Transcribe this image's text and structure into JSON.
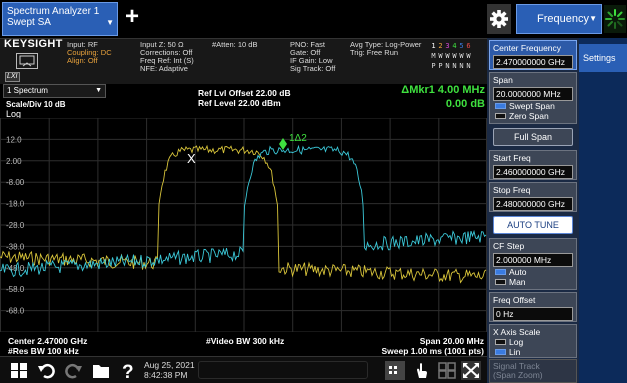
{
  "window": {
    "tab_title_line1": "Spectrum Analyzer 1",
    "tab_title_line2": "Swept SA",
    "add_tab": "+",
    "menu_label": "Frequency"
  },
  "info": {
    "brand": "KEYSIGHT",
    "lxi": "LXI",
    "col1": [
      "Input: RF",
      "Coupling: DC",
      "Align: Off"
    ],
    "col2": [
      "Input Z: 50 Ω",
      "Corrections: Off",
      "Freq Ref: Int (S)",
      "NFE: Adaptive"
    ],
    "col3": [
      "#Atten: 10 dB"
    ],
    "col4": [
      "PNO: Fast",
      "Gate: Off",
      "IF Gain: Low",
      "Sig Track: Off"
    ],
    "col5": [
      "Avg Type: Log-Power",
      "Trig: Free Run"
    ],
    "trace_row1": [
      "1",
      "2",
      "3",
      "4",
      "5",
      "6"
    ],
    "trace_row2": [
      "M",
      "W",
      "W",
      "W",
      "W",
      "W"
    ],
    "trace_row3": [
      "P",
      "P",
      "N",
      "N",
      "N",
      "N"
    ]
  },
  "plot": {
    "window_select": "1 Spectrum",
    "scale_div": "Scale/Div 10 dB",
    "scale_type": "Log",
    "ref_offset": "Ref Lvl Offset 22.00 dB",
    "ref_level": "Ref Level 22.00 dBm",
    "marker_label": "ΔMkr1  4.00 MHz",
    "marker_value": "0.00 dB",
    "marker_x": "X",
    "marker_delta": "1Δ2",
    "y_ticks": [
      "12.0",
      "2.00",
      "-8.00",
      "-18.0",
      "-28.0",
      "-38.0",
      "-48.0",
      "-58.0",
      "-68.0"
    ],
    "center_freq": "Center 2.47000 GHz",
    "res_bw": "#Res BW 100 kHz",
    "video_bw": "#Video BW 300 kHz",
    "span": "Span 20.00 MHz",
    "sweep": "Sweep 1.00 ms (1001 pts)"
  },
  "softkeys": {
    "center_freq_label": "Center Frequency",
    "center_freq_value": "2.470000000 GHz",
    "span_label": "Span",
    "span_value": "20.0000000 MHz",
    "swept_span": "Swept Span",
    "zero_span": "Zero Span",
    "full_span": "Full Span",
    "start_freq_label": "Start Freq",
    "start_freq_value": "2.460000000 GHz",
    "stop_freq_label": "Stop Freq",
    "stop_freq_value": "2.480000000 GHz",
    "auto_tune": "AUTO TUNE",
    "cf_step_label": "CF Step",
    "cf_step_value": "2.000000 MHz",
    "auto": "Auto",
    "man": "Man",
    "freq_offset_label": "Freq Offset",
    "freq_offset_value": "0 Hz",
    "x_axis_scale_label": "X Axis Scale",
    "log": "Log",
    "lin": "Lin",
    "signal_track_line1": "Signal Track",
    "signal_track_line2": "(Span Zoom)",
    "settings_tab": "Settings"
  },
  "taskbar": {
    "date": "Aug 25, 2021",
    "time": "8:42:38 PM"
  },
  "colors": {
    "yellow_trace": "#d8c43a",
    "cyan_trace": "#3bc8d8",
    "marker_green": "#3fe03f",
    "accent_blue": "#2a5fb5"
  }
}
